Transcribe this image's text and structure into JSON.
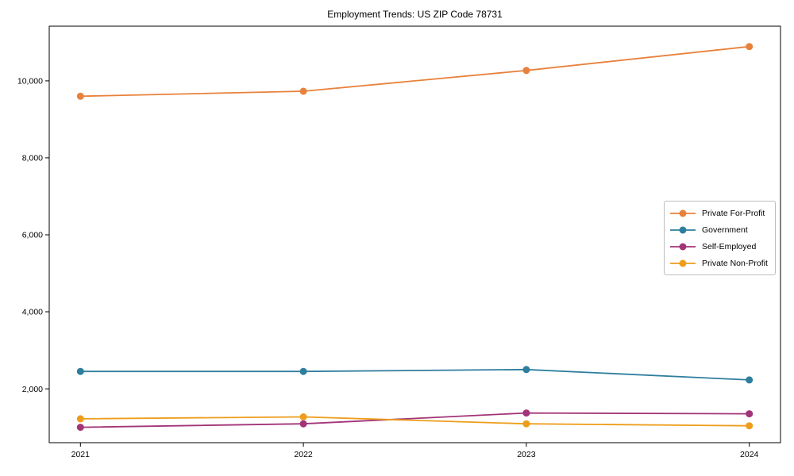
{
  "chart_data": {
    "type": "line",
    "title": "Employment Trends: US ZIP Code 78731",
    "xlabel": "",
    "ylabel": "",
    "x": [
      2021,
      2022,
      2023,
      2024
    ],
    "x_tick_labels": [
      "2021",
      "2022",
      "2023",
      "2024"
    ],
    "y_ticks": [
      2000,
      4000,
      6000,
      8000,
      10000
    ],
    "y_tick_labels": [
      "2,000",
      "4,000",
      "6,000",
      "8,000",
      "10,000"
    ],
    "xlim": [
      2020.86,
      2024.14
    ],
    "ylim": [
      600,
      11420
    ],
    "grid": false,
    "legend_position": "center right",
    "axis_color": "#000000",
    "background_color": "#ffffff",
    "series": [
      {
        "name": "Private For-Profit",
        "color": "#E8813C",
        "marker": "circle",
        "values": [
          9600,
          9730,
          10270,
          10890
        ]
      },
      {
        "name": "Government",
        "color": "#2E7E9E",
        "marker": "circle",
        "values": [
          2450,
          2450,
          2500,
          2230
        ]
      },
      {
        "name": "Self-Employed",
        "color": "#A23478",
        "marker": "circle",
        "values": [
          1000,
          1090,
          1370,
          1350
        ]
      },
      {
        "name": "Private Non-Profit",
        "color": "#EE9D1B",
        "marker": "circle",
        "values": [
          1220,
          1270,
          1090,
          1040
        ]
      }
    ]
  }
}
